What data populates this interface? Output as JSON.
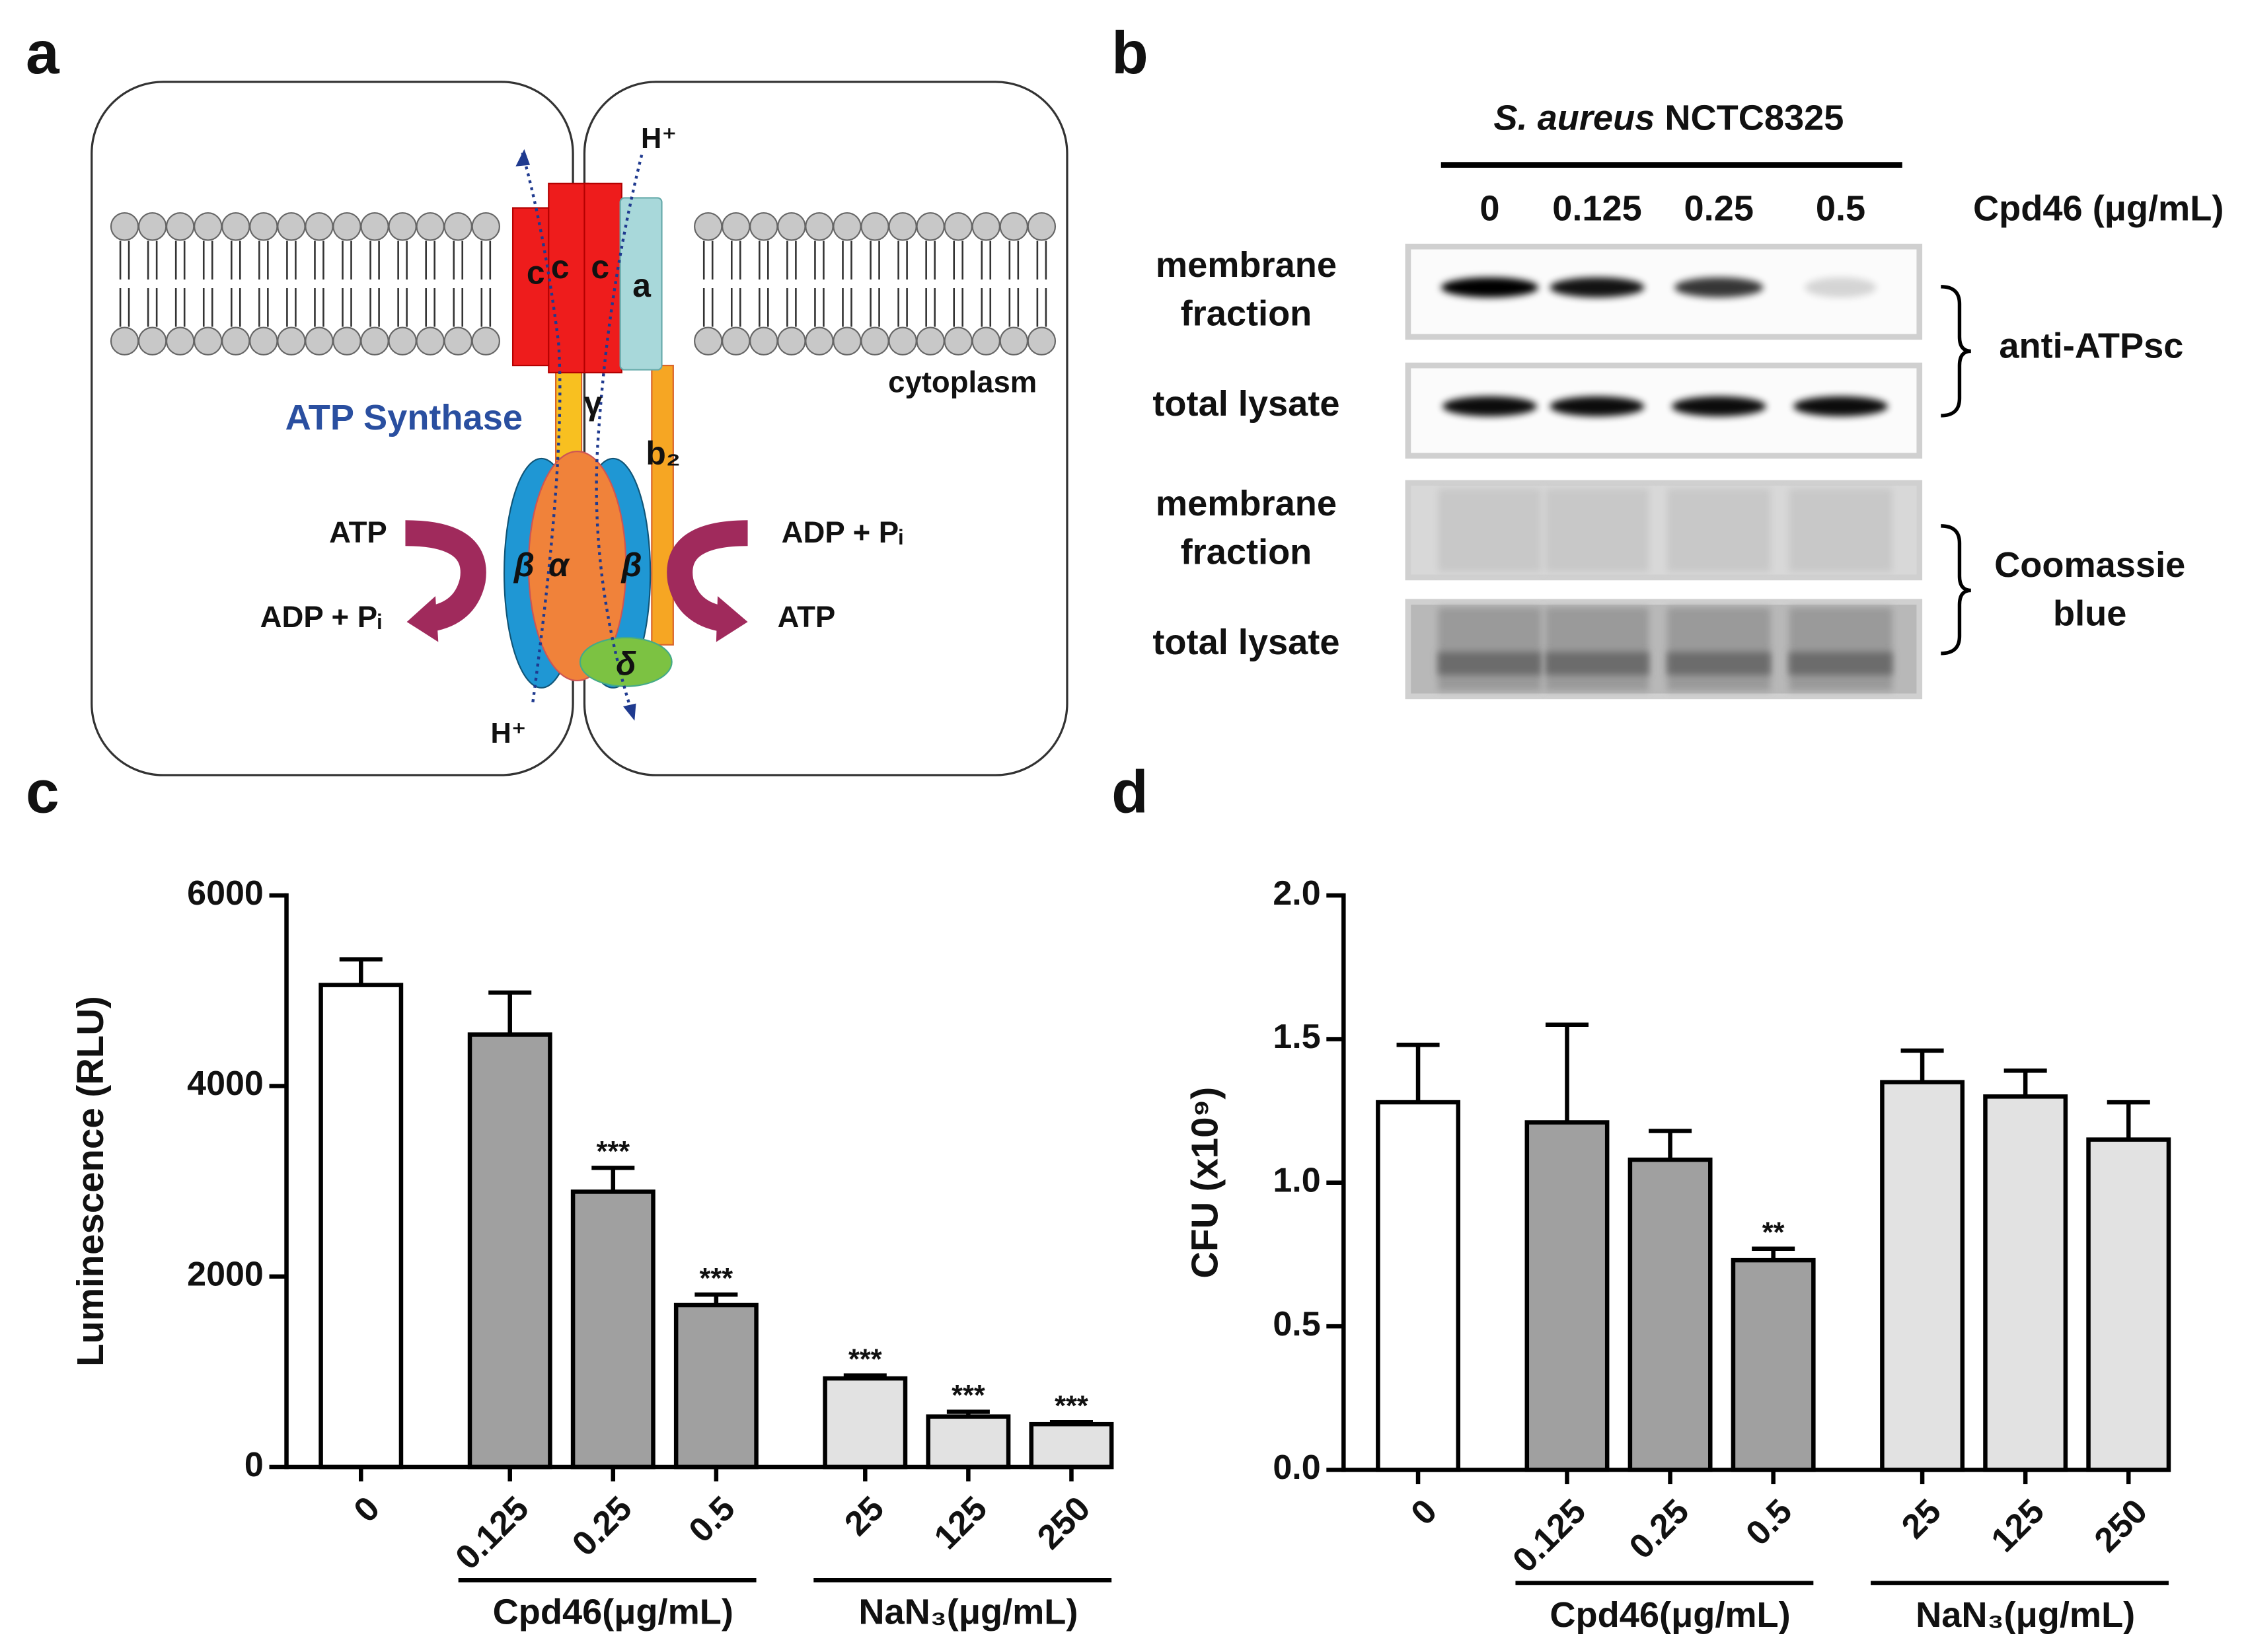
{
  "panel_labels": [
    "a",
    "b",
    "c",
    "d"
  ],
  "panel_a": {
    "title": "ATP Synthase",
    "cytoplasm": "cytoplasm",
    "proton_top": "H⁺",
    "proton_bottom": "H⁺",
    "left_in": "ATP",
    "left_out": "ADP + Pᵢ",
    "right_in": "ADP + Pᵢ",
    "right_out": "ATP",
    "subunits": [
      "c",
      "c",
      "c",
      "a",
      "γ",
      "b₂",
      "β",
      "α",
      "β",
      "δ"
    ]
  },
  "panel_b": {
    "species": "S. aureus",
    "strain": "NCTC8325",
    "concentrations": [
      "0",
      "0.125",
      "0.25",
      "0.5"
    ],
    "unit": "Cpd46 (μg/mL)",
    "rows": [
      [
        "membrane",
        "fraction"
      ],
      [
        "total lysate"
      ],
      [
        "membrane",
        "fraction"
      ],
      [
        "total lysate"
      ]
    ],
    "antibody": "anti-ATPsc",
    "stain": [
      "Coomassie",
      "blue"
    ]
  },
  "chart_data": [
    {
      "type": "bar",
      "ylabel": "Luminescence (RLU)",
      "categories": [
        "0",
        "0.125",
        "0.25",
        "0.5",
        "25",
        "125",
        "250"
      ],
      "values": [
        5060,
        4540,
        2890,
        1700,
        930,
        530,
        450
      ],
      "errors": [
        270,
        440,
        250,
        110,
        30,
        50,
        20
      ],
      "significance": [
        null,
        null,
        "***",
        "***",
        "***",
        "***",
        "***"
      ],
      "colors": [
        "#ffffff",
        "#a0a0a0",
        "#a0a0a0",
        "#a0a0a0",
        "#e2e2e2",
        "#e2e2e2",
        "#e2e2e2"
      ],
      "groups": [
        {
          "label": "Cpd46(μg/mL)",
          "members": [
            1,
            2,
            3
          ]
        },
        {
          "label": "NaN₃(μg/mL)",
          "members": [
            4,
            5,
            6
          ]
        }
      ],
      "ylim": [
        0,
        6000
      ],
      "yticks": [
        0,
        2000,
        4000,
        6000
      ]
    },
    {
      "type": "bar",
      "ylabel": "CFU (x10⁹)",
      "categories": [
        "0",
        "0.125",
        "0.25",
        "0.5",
        "25",
        "125",
        "250"
      ],
      "values": [
        1.28,
        1.21,
        1.08,
        0.73,
        1.35,
        1.3,
        1.15
      ],
      "errors": [
        0.2,
        0.34,
        0.1,
        0.04,
        0.11,
        0.09,
        0.13
      ],
      "significance": [
        null,
        null,
        null,
        "**",
        null,
        null,
        null
      ],
      "colors": [
        "#ffffff",
        "#a0a0a0",
        "#a0a0a0",
        "#a0a0a0",
        "#e2e2e2",
        "#e2e2e2",
        "#e2e2e2"
      ],
      "groups": [
        {
          "label": "Cpd46(μg/mL)",
          "members": [
            1,
            2,
            3
          ]
        },
        {
          "label": "NaN₃(μg/mL)",
          "members": [
            4,
            5,
            6
          ]
        }
      ],
      "ylim": [
        0,
        2
      ],
      "yticks": [
        {
          "value": 0,
          "label": "0.0"
        },
        {
          "value": 0.5,
          "label": "0.5"
        },
        {
          "value": 1,
          "label": "1.0"
        },
        {
          "value": 1.5,
          "label": "1.5"
        },
        {
          "value": 2,
          "label": "2.0"
        }
      ]
    }
  ]
}
